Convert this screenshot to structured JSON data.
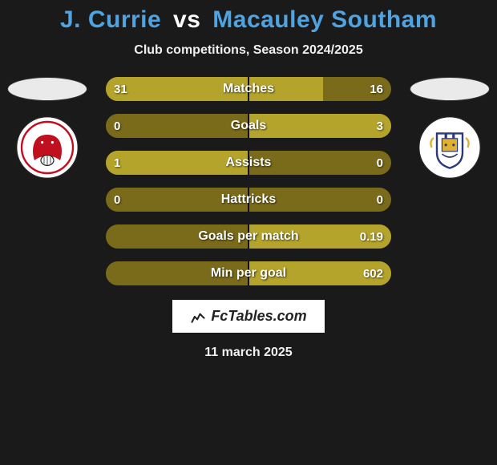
{
  "title": {
    "player1": "J. Currie",
    "vs": "vs",
    "player2": "Macauley Southam",
    "player1_color": "#4fa3e0",
    "player2_color": "#4fa3e0"
  },
  "subtitle": "Club competitions, Season 2024/2025",
  "left": {
    "flag_color": "#e8e8e8",
    "crest_bg": "#ffffff",
    "crest_svg_colors": {
      "primary": "#c01020",
      "secondary": "#ffffff",
      "stroke": "#222"
    }
  },
  "right": {
    "flag_color": "#e8e8e8",
    "crest_bg": "#ffffff",
    "crest_svg_colors": {
      "primary": "#2a3a7a",
      "accent": "#e0b030",
      "stroke": "#222"
    }
  },
  "bars": {
    "left_bg": "#7a6b1a",
    "right_bg": "#7a6b1a",
    "left_fill": "#b4a42c",
    "right_fill": "#b4a42c",
    "rows": [
      {
        "label": "Matches",
        "left_val": "31",
        "right_val": "16",
        "left_pct": 100,
        "right_pct": 52
      },
      {
        "label": "Goals",
        "left_val": "0",
        "right_val": "3",
        "left_pct": 0,
        "right_pct": 100
      },
      {
        "label": "Assists",
        "left_val": "1",
        "right_val": "0",
        "left_pct": 100,
        "right_pct": 0
      },
      {
        "label": "Hattricks",
        "left_val": "0",
        "right_val": "0",
        "left_pct": 0,
        "right_pct": 0
      },
      {
        "label": "Goals per match",
        "left_val": "",
        "right_val": "0.19",
        "left_pct": 0,
        "right_pct": 100
      },
      {
        "label": "Min per goal",
        "left_val": "",
        "right_val": "602",
        "left_pct": 0,
        "right_pct": 100
      }
    ]
  },
  "footer": {
    "brand": "FcTables.com",
    "date": "11 march 2025"
  },
  "colors": {
    "page_bg": "#1a1a1a"
  }
}
